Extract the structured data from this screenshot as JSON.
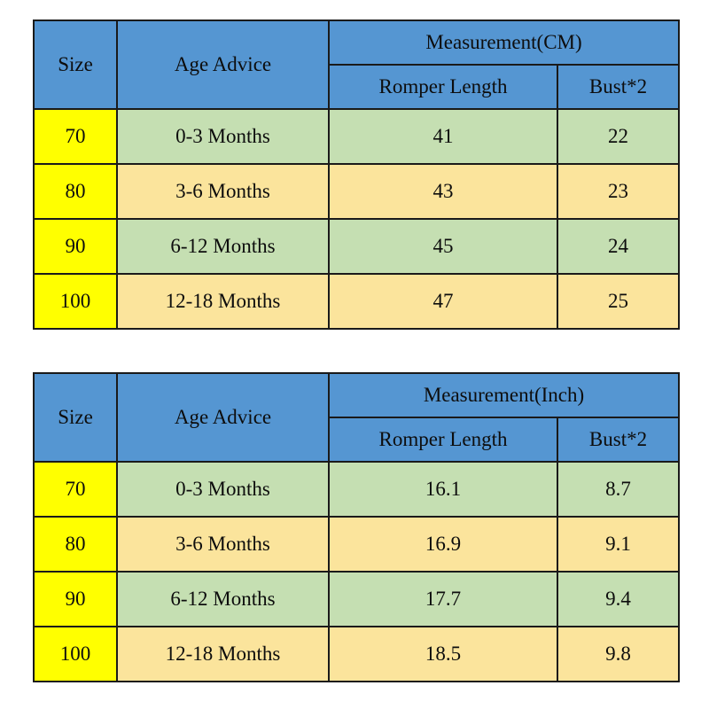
{
  "colors": {
    "header_bg": "#5596d2",
    "size_column_bg": "#ffff00",
    "row_green_bg": "#c5dfb2",
    "row_tan_bg": "#fbe49c",
    "border": "#1a1a1a",
    "text": "#0d0d0d",
    "page_bg": "#ffffff"
  },
  "tables": [
    {
      "header": {
        "size": "Size",
        "age": "Age Advice",
        "measurement": "Measurement(CM)",
        "length": "Romper Length",
        "bust": "Bust*2"
      },
      "rows": [
        {
          "size": "70",
          "age": "0-3 Months",
          "length": "41",
          "bust": "22"
        },
        {
          "size": "80",
          "age": "3-6 Months",
          "length": "43",
          "bust": "23"
        },
        {
          "size": "90",
          "age": "6-12 Months",
          "length": "45",
          "bust": "24"
        },
        {
          "size": "100",
          "age": "12-18 Months",
          "length": "47",
          "bust": "25"
        }
      ]
    },
    {
      "header": {
        "size": "Size",
        "age": "Age Advice",
        "measurement": "Measurement(Inch)",
        "length": "Romper Length",
        "bust": "Bust*2"
      },
      "rows": [
        {
          "size": "70",
          "age": "0-3 Months",
          "length": "16.1",
          "bust": "8.7"
        },
        {
          "size": "80",
          "age": "3-6 Months",
          "length": "16.9",
          "bust": "9.1"
        },
        {
          "size": "90",
          "age": "6-12 Months",
          "length": "17.7",
          "bust": "9.4"
        },
        {
          "size": "100",
          "age": "12-18 Months",
          "length": "18.5",
          "bust": "9.8"
        }
      ]
    }
  ],
  "chart_data": [
    {
      "type": "table",
      "title": "Measurement(CM)",
      "columns": [
        "Size",
        "Age Advice",
        "Romper Length",
        "Bust*2"
      ],
      "rows": [
        [
          "70",
          "0-3 Months",
          41,
          22
        ],
        [
          "80",
          "3-6 Months",
          43,
          23
        ],
        [
          "90",
          "6-12 Months",
          45,
          24
        ],
        [
          "100",
          "12-18 Months",
          47,
          25
        ]
      ]
    },
    {
      "type": "table",
      "title": "Measurement(Inch)",
      "columns": [
        "Size",
        "Age Advice",
        "Romper Length",
        "Bust*2"
      ],
      "rows": [
        [
          "70",
          "0-3 Months",
          16.1,
          8.7
        ],
        [
          "80",
          "3-6 Months",
          16.9,
          9.1
        ],
        [
          "90",
          "6-12 Months",
          17.7,
          9.4
        ],
        [
          "100",
          "12-18 Months",
          18.5,
          9.8
        ]
      ]
    }
  ]
}
